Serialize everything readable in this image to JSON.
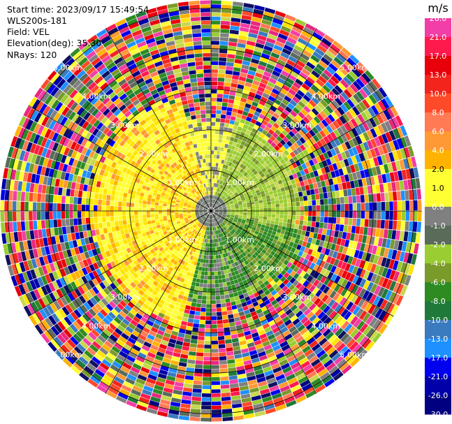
{
  "header": {
    "start_time": "Start time: 2023/09/17 15:49:54",
    "instrument": "WLS200s-181",
    "field": "Field: VEL",
    "elevation": "Elevation(deg): 35.30",
    "nrays": "NRays: 120"
  },
  "colorbar": {
    "unit": "m/s",
    "ticks": [
      "26.0",
      "21.0",
      "17.0",
      "13.0",
      "10.0",
      "8.0",
      "6.0",
      "4.0",
      "2.0",
      "1.0",
      "0.0",
      "-1.0",
      "-2.0",
      "-4.0",
      "-6.0",
      "-8.0",
      "-10.0",
      "-13.0",
      "-17.0",
      "-21.0",
      "-26.0",
      "-30.0"
    ],
    "colors": [
      "#e8287f",
      "#f23ea7",
      "#ff1a4d",
      "#e8000b",
      "#f2241c",
      "#ff4a2a",
      "#ff7a55",
      "#ff9933",
      "#ffb300",
      "#ffe500",
      "#ffff33",
      "#c8d84c",
      "#808080",
      "#5a6b5a",
      "#9acd32",
      "#7a9a2a",
      "#2e8b22",
      "#1f7a3a",
      "#3a7abf",
      "#1e90ff",
      "#0000ee",
      "#0000aa",
      "#000080",
      "#101060"
    ]
  },
  "chart_data": {
    "type": "heatmap",
    "subtype": "PPI polar scan",
    "field": "VEL",
    "elevation_deg": 35.3,
    "nrays": 120,
    "range_ring_labels": [
      "1.00km",
      "2.00km",
      "3.00km",
      "4.00km",
      "5.00km"
    ],
    "range_rings_km": [
      1,
      2,
      3,
      4,
      5
    ],
    "max_range_km": 5.2,
    "azimuth_spokes_deg": [
      0,
      30,
      60,
      90,
      120,
      150,
      180,
      210,
      240,
      270,
      300,
      330
    ],
    "clim": [
      -30.0,
      26.0
    ],
    "colorbar_label": "m/s"
  }
}
